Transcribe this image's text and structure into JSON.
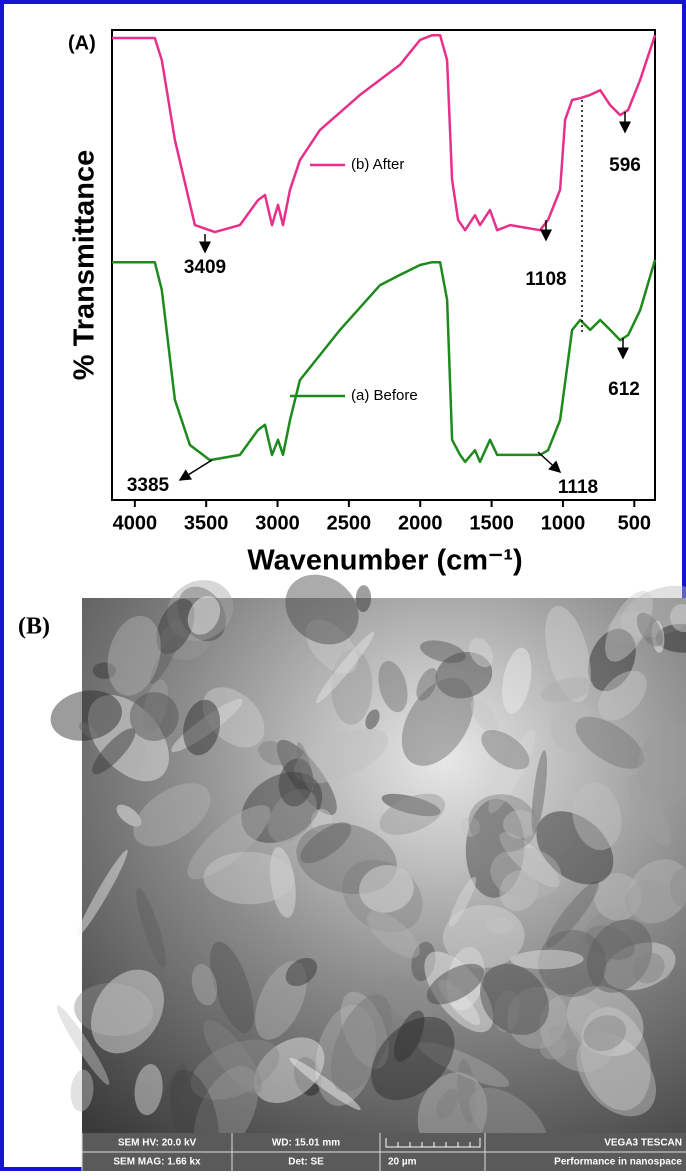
{
  "chart_data": {
    "type": "line",
    "panel_label": "(A)",
    "xlabel": "Wavenumber (cm⁻¹)",
    "ylabel": "% Transmittance",
    "xlim": [
      4160,
      355
    ],
    "xticks": [
      4000,
      3500,
      3000,
      2500,
      2000,
      1500,
      1000,
      500
    ],
    "ylim": [
      0,
      100
    ],
    "series": [
      {
        "name": "(b) After",
        "color": "#e8308a",
        "x": [
          4160,
          3860,
          3811,
          3719,
          3579,
          3439,
          3264,
          3137,
          3088,
          3039,
          2997,
          2962,
          2913,
          2843,
          2703,
          2422,
          2142,
          2001,
          1917,
          1861,
          1812,
          1777,
          1735,
          1686,
          1616,
          1581,
          1511,
          1461,
          1370,
          1160,
          1104,
          1020,
          985,
          936,
          879,
          809,
          739,
          669,
          599,
          543,
          459,
          355
        ],
        "values": [
          98.3,
          98.3,
          93.6,
          76.6,
          58.5,
          57.0,
          58.5,
          63.8,
          64.9,
          58.5,
          62.8,
          58.5,
          66.0,
          72.3,
          78.7,
          86.2,
          92.6,
          97.9,
          98.9,
          98.9,
          93.6,
          68.1,
          59.6,
          57.4,
          60.6,
          58.5,
          61.7,
          57.4,
          58.5,
          57.4,
          59.6,
          66.0,
          80.9,
          85.1,
          85.5,
          86.2,
          87.2,
          84.0,
          81.9,
          83.0,
          89.4,
          98.9
        ]
      },
      {
        "name": "(a) Before",
        "color": "#1e8a1e",
        "x": [
          4160,
          3860,
          3811,
          3719,
          3614,
          3474,
          3264,
          3137,
          3088,
          3039,
          2997,
          2962,
          2913,
          2843,
          2562,
          2282,
          2142,
          2001,
          1917,
          1861,
          1812,
          1777,
          1721,
          1686,
          1616,
          1581,
          1511,
          1461,
          1370,
          1160,
          1104,
          1020,
          936,
          879,
          809,
          739,
          669,
          599,
          543,
          459,
          355
        ],
        "values": [
          50.6,
          50.6,
          44.7,
          21.3,
          11.7,
          8.5,
          9.6,
          14.9,
          16.0,
          9.6,
          12.8,
          9.6,
          17.0,
          25.5,
          36.2,
          45.7,
          47.9,
          50.0,
          50.6,
          50.6,
          42.6,
          12.8,
          9.6,
          8.1,
          10.6,
          8.1,
          12.8,
          9.6,
          9.6,
          9.6,
          10.6,
          17.0,
          36.2,
          38.3,
          36.2,
          38.3,
          36.2,
          34.0,
          35.1,
          40.4,
          51.1
        ]
      }
    ],
    "annotations": [
      "3409",
      "1108",
      "596",
      "3385",
      "1118",
      "612"
    ]
  },
  "panel_b": {
    "label": "(B)",
    "info_bar": [
      [
        "SEM HV: 20.0 kV",
        "WD: 15.01 mm",
        "",
        "VEGA3 TESCAN"
      ],
      [
        "SEM MAG: 1.66 kx",
        "Det: SE",
        "20 µm",
        "Performance in nanospace"
      ]
    ]
  }
}
